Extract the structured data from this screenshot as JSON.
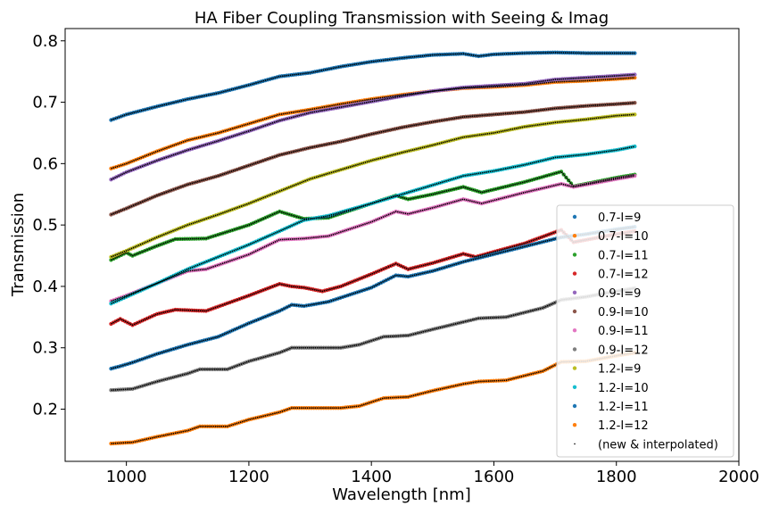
{
  "chart_data": {
    "type": "scatter",
    "title": "HA Fiber Coupling Transmission with Seeing & Imag",
    "xlabel": "Wavelength [nm]",
    "ylabel": "Transmission",
    "xlim": [
      900,
      2000
    ],
    "ylim": [
      0.115,
      0.82
    ],
    "xticks": [
      1000,
      1200,
      1400,
      1600,
      1800,
      2000
    ],
    "yticks": [
      0.2,
      0.3,
      0.4,
      0.5,
      0.6,
      0.7,
      0.8
    ],
    "grid": false,
    "legend_position": "lower-right",
    "series": [
      {
        "name": "0.7-I=9",
        "color": "#1f77b4",
        "points": [
          [
            975,
            0.671
          ],
          [
            1000,
            0.68
          ],
          [
            1050,
            0.693
          ],
          [
            1100,
            0.705
          ],
          [
            1150,
            0.715
          ],
          [
            1200,
            0.728
          ],
          [
            1250,
            0.742
          ],
          [
            1300,
            0.748
          ],
          [
            1350,
            0.758
          ],
          [
            1400,
            0.766
          ],
          [
            1450,
            0.772
          ],
          [
            1500,
            0.777
          ],
          [
            1550,
            0.779
          ],
          [
            1575,
            0.775
          ],
          [
            1600,
            0.778
          ],
          [
            1650,
            0.78
          ],
          [
            1700,
            0.781
          ],
          [
            1750,
            0.78
          ],
          [
            1800,
            0.78
          ],
          [
            1830,
            0.78
          ]
        ]
      },
      {
        "name": "0.7-I=10",
        "color": "#ff7f0e",
        "points": [
          [
            975,
            0.592
          ],
          [
            1000,
            0.6
          ],
          [
            1050,
            0.62
          ],
          [
            1100,
            0.638
          ],
          [
            1150,
            0.65
          ],
          [
            1200,
            0.665
          ],
          [
            1250,
            0.68
          ],
          [
            1300,
            0.688
          ],
          [
            1350,
            0.697
          ],
          [
            1400,
            0.705
          ],
          [
            1450,
            0.712
          ],
          [
            1500,
            0.718
          ],
          [
            1550,
            0.723
          ],
          [
            1600,
            0.725
          ],
          [
            1650,
            0.728
          ],
          [
            1700,
            0.733
          ],
          [
            1750,
            0.735
          ],
          [
            1800,
            0.738
          ],
          [
            1830,
            0.74
          ]
        ]
      },
      {
        "name": "0.7-I=11",
        "color": "#2ca02c",
        "points": [
          [
            975,
            0.443
          ],
          [
            1000,
            0.455
          ],
          [
            1010,
            0.45
          ],
          [
            1050,
            0.466
          ],
          [
            1080,
            0.477
          ],
          [
            1130,
            0.478
          ],
          [
            1200,
            0.5
          ],
          [
            1250,
            0.522
          ],
          [
            1290,
            0.51
          ],
          [
            1330,
            0.512
          ],
          [
            1400,
            0.535
          ],
          [
            1440,
            0.548
          ],
          [
            1460,
            0.542
          ],
          [
            1500,
            0.55
          ],
          [
            1550,
            0.562
          ],
          [
            1580,
            0.553
          ],
          [
            1650,
            0.57
          ],
          [
            1710,
            0.587
          ],
          [
            1730,
            0.563
          ],
          [
            1800,
            0.577
          ],
          [
            1830,
            0.582
          ]
        ]
      },
      {
        "name": "0.7-I=12",
        "color": "#d62728",
        "points": [
          [
            975,
            0.339
          ],
          [
            990,
            0.347
          ],
          [
            1010,
            0.337
          ],
          [
            1050,
            0.355
          ],
          [
            1080,
            0.362
          ],
          [
            1130,
            0.36
          ],
          [
            1200,
            0.385
          ],
          [
            1250,
            0.404
          ],
          [
            1270,
            0.4
          ],
          [
            1290,
            0.398
          ],
          [
            1320,
            0.392
          ],
          [
            1350,
            0.4
          ],
          [
            1400,
            0.42
          ],
          [
            1440,
            0.437
          ],
          [
            1460,
            0.428
          ],
          [
            1500,
            0.438
          ],
          [
            1550,
            0.453
          ],
          [
            1570,
            0.448
          ],
          [
            1650,
            0.47
          ],
          [
            1710,
            0.492
          ],
          [
            1730,
            0.472
          ],
          [
            1800,
            0.485
          ],
          [
            1830,
            0.49
          ]
        ]
      },
      {
        "name": "0.9-I=9",
        "color": "#9467bd",
        "points": [
          [
            975,
            0.574
          ],
          [
            1000,
            0.586
          ],
          [
            1050,
            0.605
          ],
          [
            1100,
            0.622
          ],
          [
            1150,
            0.637
          ],
          [
            1200,
            0.653
          ],
          [
            1250,
            0.67
          ],
          [
            1300,
            0.683
          ],
          [
            1350,
            0.692
          ],
          [
            1400,
            0.701
          ],
          [
            1450,
            0.71
          ],
          [
            1500,
            0.718
          ],
          [
            1550,
            0.724
          ],
          [
            1600,
            0.727
          ],
          [
            1650,
            0.73
          ],
          [
            1700,
            0.737
          ],
          [
            1750,
            0.74
          ],
          [
            1800,
            0.743
          ],
          [
            1830,
            0.745
          ]
        ]
      },
      {
        "name": "0.9-I=10",
        "color": "#8c564b",
        "points": [
          [
            975,
            0.517
          ],
          [
            1000,
            0.527
          ],
          [
            1050,
            0.548
          ],
          [
            1100,
            0.566
          ],
          [
            1150,
            0.58
          ],
          [
            1200,
            0.597
          ],
          [
            1250,
            0.614
          ],
          [
            1300,
            0.626
          ],
          [
            1350,
            0.636
          ],
          [
            1400,
            0.648
          ],
          [
            1450,
            0.659
          ],
          [
            1500,
            0.668
          ],
          [
            1550,
            0.676
          ],
          [
            1600,
            0.68
          ],
          [
            1650,
            0.684
          ],
          [
            1700,
            0.69
          ],
          [
            1750,
            0.694
          ],
          [
            1800,
            0.697
          ],
          [
            1830,
            0.699
          ]
        ]
      },
      {
        "name": "0.9-I=11",
        "color": "#e377c2",
        "points": [
          [
            975,
            0.376
          ],
          [
            1000,
            0.385
          ],
          [
            1050,
            0.405
          ],
          [
            1100,
            0.425
          ],
          [
            1130,
            0.428
          ],
          [
            1200,
            0.452
          ],
          [
            1250,
            0.476
          ],
          [
            1290,
            0.478
          ],
          [
            1330,
            0.482
          ],
          [
            1400,
            0.505
          ],
          [
            1440,
            0.522
          ],
          [
            1460,
            0.518
          ],
          [
            1500,
            0.528
          ],
          [
            1550,
            0.542
          ],
          [
            1580,
            0.535
          ],
          [
            1650,
            0.553
          ],
          [
            1710,
            0.567
          ],
          [
            1730,
            0.562
          ],
          [
            1800,
            0.575
          ],
          [
            1830,
            0.58
          ]
        ]
      },
      {
        "name": "0.9-I=12",
        "color": "#7f7f7f",
        "points": [
          [
            975,
            0.231
          ],
          [
            1010,
            0.233
          ],
          [
            1050,
            0.245
          ],
          [
            1100,
            0.258
          ],
          [
            1120,
            0.265
          ],
          [
            1165,
            0.265
          ],
          [
            1200,
            0.278
          ],
          [
            1250,
            0.292
          ],
          [
            1270,
            0.3
          ],
          [
            1350,
            0.3
          ],
          [
            1380,
            0.305
          ],
          [
            1420,
            0.318
          ],
          [
            1460,
            0.32
          ],
          [
            1500,
            0.33
          ],
          [
            1550,
            0.342
          ],
          [
            1575,
            0.348
          ],
          [
            1620,
            0.35
          ],
          [
            1680,
            0.365
          ],
          [
            1710,
            0.378
          ],
          [
            1750,
            0.383
          ],
          [
            1800,
            0.392
          ],
          [
            1830,
            0.397
          ]
        ]
      },
      {
        "name": "1.2-I=9",
        "color": "#bcbd22",
        "points": [
          [
            975,
            0.448
          ],
          [
            1000,
            0.458
          ],
          [
            1050,
            0.48
          ],
          [
            1100,
            0.5
          ],
          [
            1150,
            0.517
          ],
          [
            1200,
            0.535
          ],
          [
            1250,
            0.555
          ],
          [
            1300,
            0.575
          ],
          [
            1350,
            0.59
          ],
          [
            1400,
            0.605
          ],
          [
            1450,
            0.618
          ],
          [
            1500,
            0.63
          ],
          [
            1550,
            0.643
          ],
          [
            1600,
            0.65
          ],
          [
            1650,
            0.66
          ],
          [
            1700,
            0.667
          ],
          [
            1750,
            0.672
          ],
          [
            1800,
            0.678
          ],
          [
            1830,
            0.68
          ]
        ]
      },
      {
        "name": "1.2-I=10",
        "color": "#17becf",
        "points": [
          [
            975,
            0.372
          ],
          [
            1000,
            0.383
          ],
          [
            1050,
            0.405
          ],
          [
            1100,
            0.428
          ],
          [
            1150,
            0.448
          ],
          [
            1200,
            0.468
          ],
          [
            1250,
            0.49
          ],
          [
            1290,
            0.508
          ],
          [
            1330,
            0.515
          ],
          [
            1400,
            0.535
          ],
          [
            1450,
            0.55
          ],
          [
            1500,
            0.565
          ],
          [
            1550,
            0.58
          ],
          [
            1600,
            0.588
          ],
          [
            1650,
            0.598
          ],
          [
            1700,
            0.61
          ],
          [
            1750,
            0.615
          ],
          [
            1800,
            0.622
          ],
          [
            1830,
            0.628
          ]
        ]
      },
      {
        "name": "1.2-I=11",
        "color": "#1f77b4",
        "points": [
          [
            975,
            0.266
          ],
          [
            990,
            0.27
          ],
          [
            1010,
            0.276
          ],
          [
            1050,
            0.29
          ],
          [
            1100,
            0.305
          ],
          [
            1150,
            0.318
          ],
          [
            1200,
            0.34
          ],
          [
            1250,
            0.36
          ],
          [
            1270,
            0.37
          ],
          [
            1290,
            0.368
          ],
          [
            1330,
            0.375
          ],
          [
            1400,
            0.398
          ],
          [
            1440,
            0.418
          ],
          [
            1460,
            0.416
          ],
          [
            1500,
            0.425
          ],
          [
            1550,
            0.44
          ],
          [
            1570,
            0.445
          ],
          [
            1650,
            0.465
          ],
          [
            1710,
            0.48
          ],
          [
            1750,
            0.485
          ],
          [
            1800,
            0.493
          ],
          [
            1830,
            0.497
          ]
        ]
      },
      {
        "name": "1.2-I=12",
        "color": "#ff7f0e",
        "points": [
          [
            975,
            0.144
          ],
          [
            1010,
            0.146
          ],
          [
            1050,
            0.155
          ],
          [
            1100,
            0.165
          ],
          [
            1120,
            0.172
          ],
          [
            1165,
            0.172
          ],
          [
            1200,
            0.183
          ],
          [
            1250,
            0.195
          ],
          [
            1270,
            0.202
          ],
          [
            1350,
            0.202
          ],
          [
            1380,
            0.205
          ],
          [
            1420,
            0.218
          ],
          [
            1460,
            0.22
          ],
          [
            1500,
            0.23
          ],
          [
            1550,
            0.241
          ],
          [
            1575,
            0.245
          ],
          [
            1620,
            0.247
          ],
          [
            1680,
            0.262
          ],
          [
            1710,
            0.277
          ],
          [
            1750,
            0.278
          ],
          [
            1800,
            0.287
          ],
          [
            1830,
            0.292
          ]
        ]
      }
    ],
    "overlay_series_name": "(new & interpolated)",
    "overlay_color": "#000000"
  }
}
